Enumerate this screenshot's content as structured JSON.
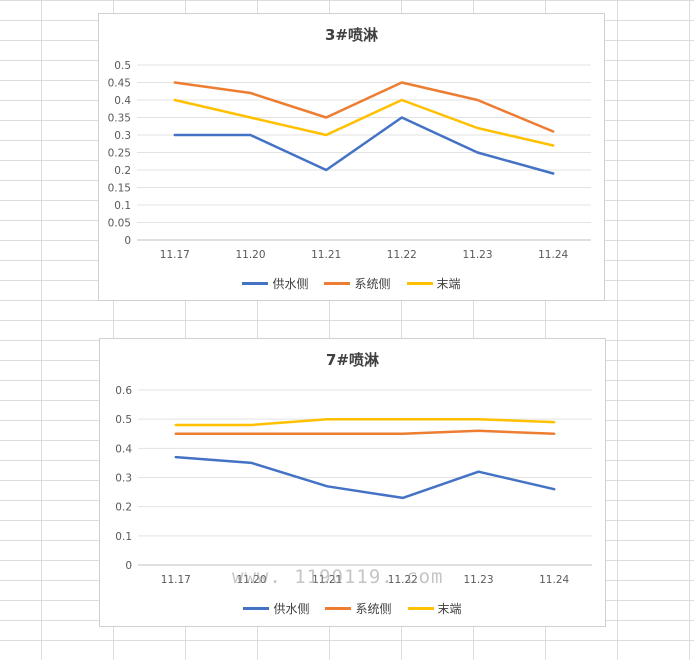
{
  "watermark": "www. 1190119. com",
  "chart_data": [
    {
      "type": "line",
      "title": "3#喷淋",
      "categories": [
        "11.17",
        "11.20",
        "11.21",
        "11.22",
        "11.23",
        "11.24"
      ],
      "y_ticks": [
        "0",
        "0.05",
        "0.1",
        "0.15",
        "0.2",
        "0.25",
        "0.3",
        "0.35",
        "0.4",
        "0.45",
        "0.5"
      ],
      "ylim": [
        0,
        0.5
      ],
      "grid": true,
      "legend_position": "bottom",
      "series": [
        {
          "name": "供水侧",
          "color": "#4472C4",
          "values": [
            0.3,
            0.3,
            0.2,
            0.35,
            0.25,
            0.19
          ]
        },
        {
          "name": "系统侧",
          "color": "#ED7D31",
          "values": [
            0.45,
            0.42,
            0.35,
            0.45,
            0.4,
            0.31
          ]
        },
        {
          "name": "末端",
          "color": "#FFC000",
          "values": [
            0.4,
            0.35,
            0.3,
            0.4,
            0.32,
            0.27
          ]
        }
      ]
    },
    {
      "type": "line",
      "title": "7#喷淋",
      "categories": [
        "11.17",
        "11.20",
        "11.21",
        "11.22",
        "11.23",
        "11.24"
      ],
      "y_ticks": [
        "0",
        "0.1",
        "0.2",
        "0.3",
        "0.4",
        "0.5",
        "0.6"
      ],
      "ylim": [
        0,
        0.6
      ],
      "grid": true,
      "legend_position": "bottom",
      "series": [
        {
          "name": "供水侧",
          "color": "#4472C4",
          "values": [
            0.37,
            0.35,
            0.27,
            0.23,
            0.32,
            0.26
          ]
        },
        {
          "name": "系统侧",
          "color": "#ED7D31",
          "values": [
            0.45,
            0.45,
            0.45,
            0.45,
            0.46,
            0.45
          ]
        },
        {
          "name": "末端",
          "color": "#FFC000",
          "values": [
            0.48,
            0.48,
            0.5,
            0.5,
            0.5,
            0.49
          ]
        }
      ]
    }
  ]
}
